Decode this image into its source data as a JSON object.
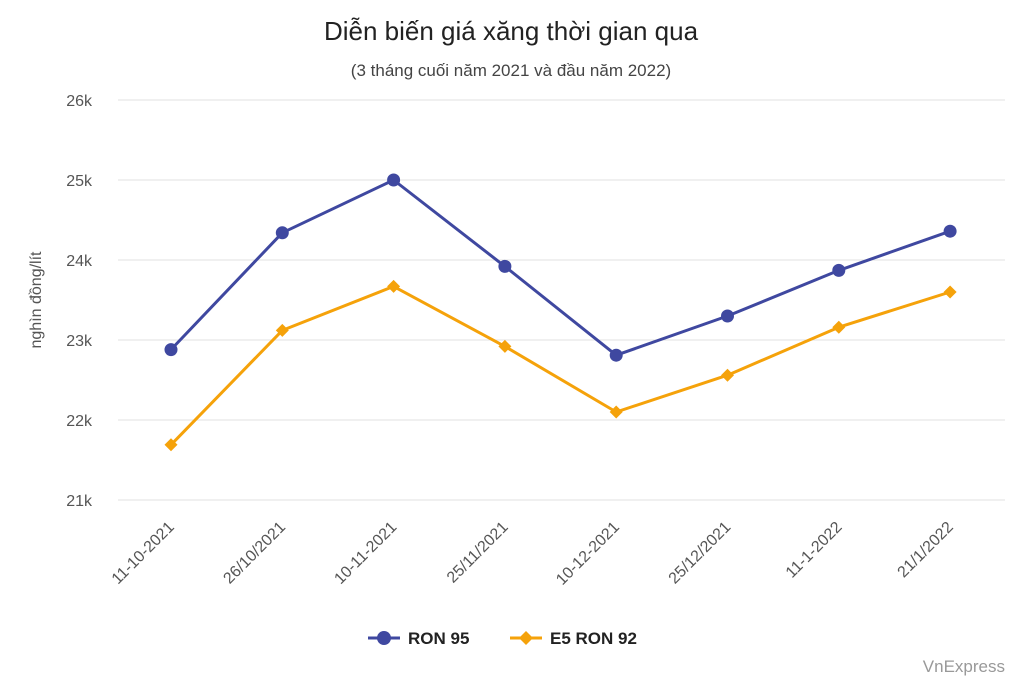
{
  "chart_data": {
    "type": "line",
    "title": "Diễn biến giá xăng thời gian qua",
    "subtitle": "(3 tháng cuối năm 2021 và đầu năm 2022)",
    "ylabel": "nghìn đồng/lít",
    "xlabel": "",
    "categories": [
      "11-10-2021",
      "26/10/2021",
      "10-11-2021",
      "25/11/2021",
      "10-12-2021",
      "25/12/2021",
      "11-1-2022",
      "21/1/2022"
    ],
    "ylim": [
      21000,
      26000
    ],
    "yticks": [
      21000,
      22000,
      23000,
      24000,
      25000,
      26000
    ],
    "ytick_labels": [
      "21k",
      "22k",
      "23k",
      "24k",
      "25k",
      "26k"
    ],
    "grid": true,
    "legend_position": "bottom",
    "series": [
      {
        "name": "RON 95",
        "color": "#3f48a0",
        "marker": "circle",
        "values": [
          22880,
          24340,
          25000,
          23920,
          22810,
          23300,
          23870,
          24360
        ]
      },
      {
        "name": "E5 RON 92",
        "color": "#f5a20a",
        "marker": "diamond",
        "values": [
          21690,
          23120,
          23670,
          22920,
          22100,
          22560,
          23160,
          23600
        ]
      }
    ]
  },
  "credit": "VnExpress"
}
